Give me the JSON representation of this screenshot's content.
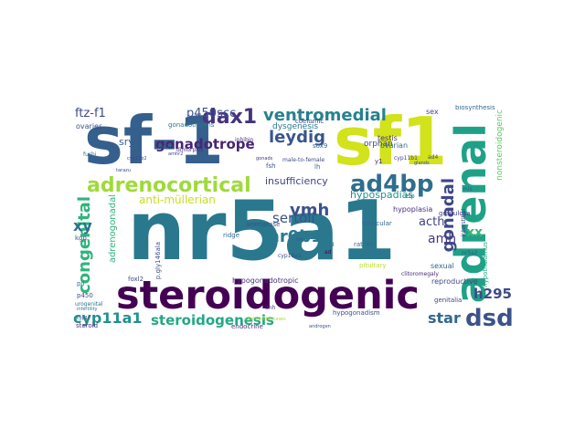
{
  "words": [
    {
      "t": "nr5a1",
      "c": "#2a788e"
    },
    {
      "t": "sf-1",
      "c": "#355f8d"
    },
    {
      "t": "sf1",
      "c": "#d2e21b"
    },
    {
      "t": "steroidogenic",
      "c": "#440154"
    },
    {
      "t": "adrenal",
      "c": "#1fa187"
    },
    {
      "t": "adrenocortical",
      "c": "#a0da39"
    },
    {
      "t": "ad4bp",
      "c": "#2e6e8e"
    },
    {
      "t": "dsd",
      "c": "#3b528b"
    },
    {
      "t": "dax1",
      "c": "#46327e"
    },
    {
      "t": "ventromedial",
      "c": "#26828e"
    },
    {
      "t": "leydig",
      "c": "#39568c"
    },
    {
      "t": "congenital",
      "c": "#2fb47c"
    },
    {
      "t": "gonadal",
      "c": "#3f4788"
    },
    {
      "t": "vmh",
      "c": "#3b528b"
    },
    {
      "t": "gonadotrope",
      "c": "#482475"
    },
    {
      "t": "nr0b1",
      "c": "#2a788e"
    },
    {
      "t": "h295r",
      "c": "#3e4a89"
    },
    {
      "t": "cyp11a1",
      "c": "#21918c"
    },
    {
      "t": "steroidogenesis",
      "c": "#22a884"
    },
    {
      "t": "star",
      "c": "#31688e"
    },
    {
      "t": "xx",
      "c": "#35b779"
    },
    {
      "t": "xy",
      "c": "#2c728e"
    },
    {
      "t": "sertoli",
      "c": "#3b528b"
    },
    {
      "t": "amh",
      "c": "#443a83"
    },
    {
      "t": "acth",
      "c": "#404387"
    },
    {
      "t": "ftz-f1",
      "c": "#3e4989"
    },
    {
      "t": "p450scc",
      "c": "#3b528b"
    },
    {
      "t": "sry",
      "c": "#355f8d"
    },
    {
      "t": "hypospadias",
      "c": "#21918c"
    },
    {
      "t": "insufficiency",
      "c": "#404387"
    },
    {
      "t": "anti-müllerian",
      "c": "#c8e020"
    },
    {
      "t": "adrenogonadal",
      "c": "#2fb47c"
    },
    {
      "t": "dysgenesis",
      "c": "#2a788e"
    },
    {
      "t": "testis",
      "c": "#453882"
    },
    {
      "t": "orphan",
      "c": "#3e4989"
    },
    {
      "t": "ovarian",
      "c": "#30698e"
    },
    {
      "t": "nonsteroidogenic",
      "c": "#5ec962"
    },
    {
      "t": "hypoplasia",
      "c": "#46327e"
    },
    {
      "t": "sexual",
      "c": "#31688e"
    },
    {
      "t": "reproductive",
      "c": "#3e4a89"
    },
    {
      "t": "hypogonadotropic",
      "c": "#472f7d"
    },
    {
      "t": "hypogonadism",
      "c": "#3b528b"
    },
    {
      "t": "genitalia",
      "c": "#414487"
    },
    {
      "t": "steroid",
      "c": "#472d7b"
    },
    {
      "t": "endocrine",
      "c": "#472c7a"
    },
    {
      "t": "granulosa",
      "c": "#404387"
    },
    {
      "t": "ovaries",
      "c": "#3b528b"
    },
    {
      "t": "gonadotropins",
      "c": "#2a788e"
    },
    {
      "t": "coelomic",
      "c": "#3f4788"
    },
    {
      "t": "testicular",
      "c": "#31688e"
    },
    {
      "t": "aromatase",
      "c": "#3b528b"
    },
    {
      "t": "rathke",
      "c": "#30698e"
    },
    {
      "t": "pituitary",
      "c": "#bddf26"
    },
    {
      "t": "clitoromegaly",
      "c": "#482878"
    },
    {
      "t": "biosynthesis",
      "c": "#31688e"
    },
    {
      "t": "sex",
      "c": "#3e4a89"
    },
    {
      "t": "y1",
      "c": "#472d7b"
    },
    {
      "t": "elp",
      "c": "#2a788e"
    },
    {
      "t": "cyp11b1",
      "c": "#404387"
    },
    {
      "t": "fsh",
      "c": "#39568c"
    },
    {
      "t": "lh",
      "c": "#2c728e"
    },
    {
      "t": "sox9",
      "c": "#33638d"
    },
    {
      "t": "kgn",
      "c": "#3b528b"
    },
    {
      "t": "p450",
      "c": "#3e4989"
    },
    {
      "t": "pii",
      "c": "#2c728e"
    },
    {
      "t": "dhh",
      "c": "#472f7d"
    },
    {
      "t": "ridge",
      "c": "#31688e"
    },
    {
      "t": "foxl2",
      "c": "#3f4788"
    },
    {
      "t": "p.gly146ala",
      "c": "#3b528b"
    },
    {
      "t": "dimorphic",
      "c": "#46337f"
    },
    {
      "t": "male-to-female",
      "c": "#3e4989"
    },
    {
      "t": "nr5a2",
      "c": "#3b528b"
    },
    {
      "t": "cyp19a1",
      "c": "#3e4a89"
    },
    {
      "t": "hypothalamus",
      "c": "#22a884"
    },
    {
      "t": "urogenital",
      "c": "#2c728e"
    },
    {
      "t": "interstitial",
      "c": "#404387"
    },
    {
      "t": "fushi",
      "c": "#2c728e"
    },
    {
      "t": "tarazu",
      "c": "#3e4a89"
    },
    {
      "t": "inhibin",
      "c": "#46327e"
    },
    {
      "t": "gonads",
      "c": "#453882"
    },
    {
      "t": "cyp17",
      "c": "#414487"
    },
    {
      "t": "cyp11b2",
      "c": "#3e4989"
    },
    {
      "t": "mc2r",
      "c": "#2a788e"
    },
    {
      "t": "amhr2",
      "c": "#3f4788"
    },
    {
      "t": "androgen",
      "c": "#3b528b"
    },
    {
      "t": "tescases",
      "c": "#a8db34"
    },
    {
      "t": "cholesterol",
      "c": "#a8db34"
    },
    {
      "t": "infertility",
      "c": "#2a788e"
    },
    {
      "t": "ad4",
      "c": "#3e4989"
    },
    {
      "t": "mis",
      "c": "#355f8d"
    },
    {
      "t": "ihh",
      "c": "#3b528b"
    },
    {
      "t": "ld",
      "c": "#2c728e"
    },
    {
      "t": "glands",
      "c": "#3e4a89"
    },
    {
      "t": "ad",
      "c": "#440154"
    }
  ]
}
